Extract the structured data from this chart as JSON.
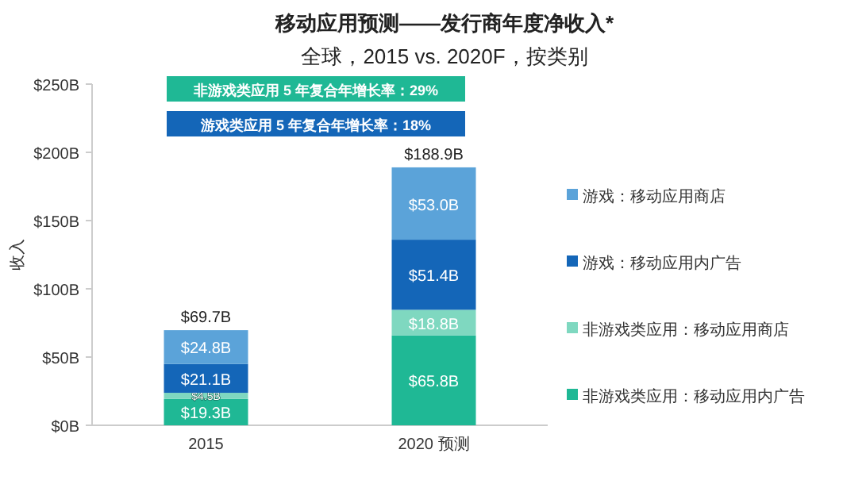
{
  "chart_data": {
    "type": "bar",
    "title": "移动应用预测——发行商年度净收入*",
    "subtitle": "全球，2015 vs. 2020F，按类别",
    "ylabel": "收入",
    "categories": [
      "2015",
      "2020 预测"
    ],
    "stacked": true,
    "legend": "right",
    "ylim": [
      0,
      250
    ],
    "yticks": [
      {
        "value": 0,
        "label": "$0B"
      },
      {
        "value": 50,
        "label": "$50B"
      },
      {
        "value": 100,
        "label": "$100B"
      },
      {
        "value": 150,
        "label": "$150B"
      },
      {
        "value": 200,
        "label": "$200B"
      },
      {
        "value": 250,
        "label": "$250B"
      }
    ],
    "series": [
      {
        "name": "非游戏类应用：移动应用内广告",
        "color": "#1fb895",
        "values": [
          19.3,
          65.8
        ],
        "value_labels": [
          "$19.3B",
          "$65.8B"
        ]
      },
      {
        "name": "非游戏类应用：移动应用商店",
        "color": "#7fd8c0",
        "values": [
          4.5,
          18.8
        ],
        "value_labels": [
          "$4.5B",
          "$18.8B"
        ]
      },
      {
        "name": "游戏：移动应用内广告",
        "color": "#1466b8",
        "values": [
          21.1,
          51.4
        ],
        "value_labels": [
          "$21.1B",
          "$51.4B"
        ]
      },
      {
        "name": "游戏：移动应用商店",
        "color": "#5ba3d9",
        "values": [
          24.8,
          53.0
        ],
        "value_labels": [
          "$24.8B",
          "$53.0B"
        ]
      }
    ],
    "totals": [
      "$69.7B",
      "$188.9B"
    ],
    "annotations": [
      "非游戏类应用 5 年复合年增长率：29%",
      "游戏类应用 5 年复合年增长率：18%"
    ]
  }
}
